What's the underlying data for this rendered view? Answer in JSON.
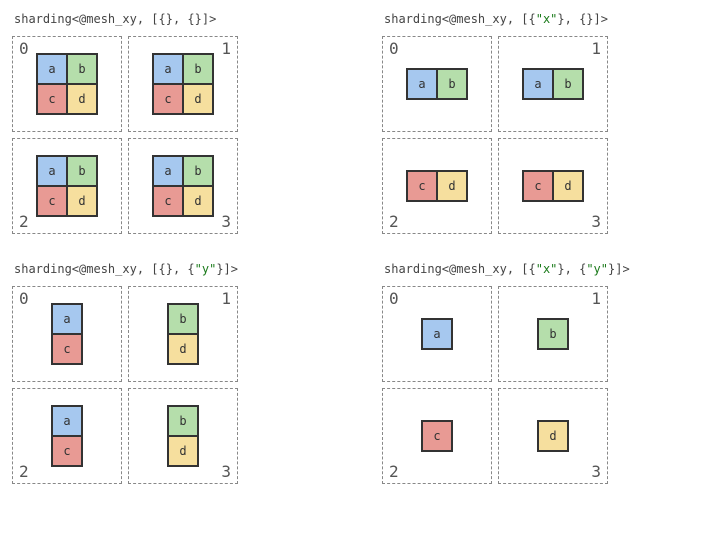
{
  "colors": {
    "a": "#a6c8ef",
    "b": "#b5deab",
    "c": "#e89a94",
    "d": "#f6df9e"
  },
  "cases": [
    {
      "title_prefix": "sharding<@mesh_xy, [{}, {}]>",
      "title_strings": [],
      "quadrants": [
        {
          "cols": 2,
          "rows": 2,
          "cells": [
            "a",
            "b",
            "c",
            "d"
          ]
        },
        {
          "cols": 2,
          "rows": 2,
          "cells": [
            "a",
            "b",
            "c",
            "d"
          ]
        },
        {
          "cols": 2,
          "rows": 2,
          "cells": [
            "a",
            "b",
            "c",
            "d"
          ]
        },
        {
          "cols": 2,
          "rows": 2,
          "cells": [
            "a",
            "b",
            "c",
            "d"
          ]
        }
      ]
    },
    {
      "title_prefix": "sharding<@mesh_xy, [{\"x\"}, {}]>",
      "title_strings": [
        "\"x\""
      ],
      "quadrants": [
        {
          "cols": 2,
          "rows": 1,
          "cells": [
            "a",
            "b"
          ]
        },
        {
          "cols": 2,
          "rows": 1,
          "cells": [
            "a",
            "b"
          ]
        },
        {
          "cols": 2,
          "rows": 1,
          "cells": [
            "c",
            "d"
          ]
        },
        {
          "cols": 2,
          "rows": 1,
          "cells": [
            "c",
            "d"
          ]
        }
      ]
    },
    {
      "title_prefix": "sharding<@mesh_xy, [{}, {\"y\"}]>",
      "title_strings": [
        "\"y\""
      ],
      "quadrants": [
        {
          "cols": 1,
          "rows": 2,
          "cells": [
            "a",
            "c"
          ]
        },
        {
          "cols": 1,
          "rows": 2,
          "cells": [
            "b",
            "d"
          ]
        },
        {
          "cols": 1,
          "rows": 2,
          "cells": [
            "a",
            "c"
          ]
        },
        {
          "cols": 1,
          "rows": 2,
          "cells": [
            "b",
            "d"
          ]
        }
      ]
    },
    {
      "title_prefix": "sharding<@mesh_xy, [{\"x\"}, {\"y\"}]>",
      "title_strings": [
        "\"x\"",
        "\"y\""
      ],
      "quadrants": [
        {
          "cols": 1,
          "rows": 1,
          "cells": [
            "a"
          ]
        },
        {
          "cols": 1,
          "rows": 1,
          "cells": [
            "b"
          ]
        },
        {
          "cols": 1,
          "rows": 1,
          "cells": [
            "c"
          ]
        },
        {
          "cols": 1,
          "rows": 1,
          "cells": [
            "d"
          ]
        }
      ]
    }
  ]
}
